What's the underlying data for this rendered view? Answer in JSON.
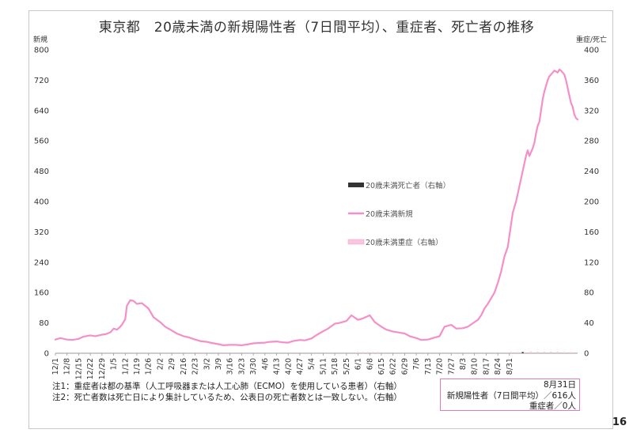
{
  "page_number": "16",
  "chart_data": {
    "type": "line",
    "title": "東京都　20歳未満の新規陽性者（7日間平均）、重症者、死亡者の推移",
    "ylabel_left": "新規",
    "ylabel_right": "重症/死亡",
    "ylim_left": [
      0,
      800
    ],
    "ylim_right": [
      0,
      400
    ],
    "yticks_left": [
      0,
      80,
      160,
      240,
      320,
      400,
      480,
      560,
      640,
      720,
      800
    ],
    "yticks_right": [
      0,
      40,
      80,
      120,
      160,
      200,
      240,
      280,
      320,
      360,
      400
    ],
    "x_tick_labels": [
      "12/1",
      "12/8",
      "12/15",
      "12/22",
      "12/29",
      "1/5",
      "1/12",
      "1/19",
      "1/26",
      "2/2",
      "2/9",
      "2/16",
      "2/23",
      "3/2",
      "3/9",
      "3/16",
      "3/23",
      "3/30",
      "4/6",
      "4/13",
      "4/20",
      "4/27",
      "5/4",
      "5/11",
      "5/18",
      "5/25",
      "6/1",
      "6/8",
      "6/15",
      "6/22",
      "6/29",
      "7/6",
      "7/13",
      "7/20",
      "7/27",
      "8/3",
      "8/10",
      "8/17",
      "8/24",
      "8/31"
    ],
    "legend": [
      {
        "name": "20歳未満死亡者（右軸）",
        "color": "#333333",
        "style": "bar"
      },
      {
        "name": "20歳未満新規",
        "color": "#f48fc8",
        "style": "line"
      },
      {
        "name": "20歳未満重症（右軸）",
        "color": "#f9c6e0",
        "style": "bar"
      }
    ],
    "series": [
      {
        "name": "20歳未満新規",
        "axis": "left",
        "day_index": [
          0,
          3,
          7,
          10,
          14,
          17,
          21,
          24,
          28,
          30,
          33,
          35,
          37,
          39,
          40,
          42,
          43,
          45,
          47,
          49,
          52,
          56,
          59,
          63,
          66,
          70,
          73,
          77,
          80,
          84,
          87,
          91,
          94,
          98,
          101,
          105,
          108,
          112,
          115,
          119,
          122,
          126,
          129,
          133,
          136,
          140,
          143,
          147,
          150,
          154,
          157,
          161,
          164,
          168,
          171,
          175,
          178,
          182,
          185,
          189,
          192,
          196,
          199,
          203,
          206,
          210,
          213,
          217,
          220,
          224,
          227,
          231,
          234,
          238,
          241,
          245,
          248,
          250,
          252,
          254,
          256,
          258,
          260,
          262,
          264,
          266,
          268,
          270,
          272,
          273,
          274,
          275,
          276,
          277,
          278,
          279,
          280,
          281,
          282,
          283,
          284,
          285,
          286,
          287,
          288,
          289,
          290,
          291,
          292,
          293,
          294,
          295,
          296,
          297,
          298,
          299,
          300,
          301,
          302,
          303,
          304,
          305,
          306,
          307,
          308,
          309,
          310,
          311,
          312,
          313,
          314
        ],
        "values": [
          36,
          40,
          36,
          35,
          38,
          44,
          47,
          45,
          49,
          50,
          55,
          65,
          62,
          70,
          75,
          90,
          125,
          140,
          138,
          130,
          132,
          118,
          95,
          82,
          70,
          60,
          52,
          45,
          42,
          36,
          32,
          30,
          27,
          24,
          21,
          22,
          22,
          21,
          23,
          26,
          27,
          28,
          30,
          31,
          29,
          28,
          32,
          35,
          34,
          39,
          48,
          58,
          65,
          78,
          80,
          85,
          100,
          88,
          92,
          100,
          82,
          70,
          62,
          57,
          55,
          52,
          45,
          40,
          35,
          36,
          40,
          45,
          70,
          75,
          65,
          66,
          70,
          76,
          82,
          88,
          100,
          118,
          130,
          145,
          160,
          185,
          215,
          255,
          280,
          310,
          340,
          370,
          385,
          400,
          420,
          440,
          460,
          480,
          500,
          520,
          535,
          520,
          530,
          540,
          555,
          580,
          600,
          610,
          640,
          670,
          690,
          705,
          720,
          730,
          735,
          740,
          745,
          743,
          740,
          748,
          745,
          740,
          735,
          720,
          700,
          680,
          660,
          650,
          630,
          620,
          616
        ]
      },
      {
        "name": "20歳未満重症（右軸）",
        "axis": "right",
        "day_index": [
          182,
          185,
          188,
          191,
          194,
          274,
          278,
          282,
          286,
          290,
          294,
          298,
          302,
          306,
          310,
          314
        ],
        "values": [
          1,
          1,
          1,
          1,
          1,
          1,
          1,
          1,
          2,
          2,
          2,
          2,
          2,
          1,
          1,
          0
        ]
      },
      {
        "name": "20歳未満死亡者（右軸）",
        "axis": "right",
        "day_index": [
          281
        ],
        "values": [
          1
        ]
      }
    ]
  },
  "notes": [
    "注1：重症者は都の基準（人工呼吸器または人工心肺（ECMO）を使用している患者）（右軸）",
    "注2：死亡者数は死亡日により集計しているため、公表日の死亡者数とは一致しない。（右軸）"
  ],
  "info_box": {
    "date": "8月31日",
    "new_cases": "新規陽性者（7日間平均）／616人",
    "severe": "重症者／0人"
  }
}
